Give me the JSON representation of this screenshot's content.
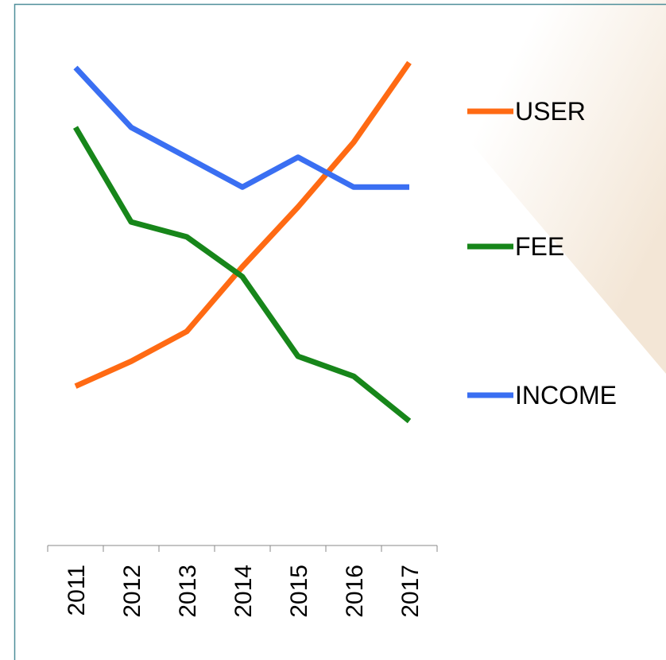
{
  "chart_data": {
    "type": "line",
    "categories": [
      "2011",
      "2012",
      "2013",
      "2014",
      "2015",
      "2016",
      "2017"
    ],
    "series": [
      {
        "name": "USER",
        "color": "#ff6a13",
        "values": [
          32,
          37,
          43,
          56,
          68,
          81,
          97
        ]
      },
      {
        "name": "FEE",
        "color": "#17861a",
        "values": [
          84,
          65,
          62,
          54,
          38,
          34,
          25
        ]
      },
      {
        "name": "INCOME",
        "color": "#3a6ff2",
        "values": [
          96,
          84,
          78,
          72,
          78,
          72,
          72
        ]
      }
    ],
    "ylim": [
      0,
      100
    ],
    "legend": "right"
  }
}
